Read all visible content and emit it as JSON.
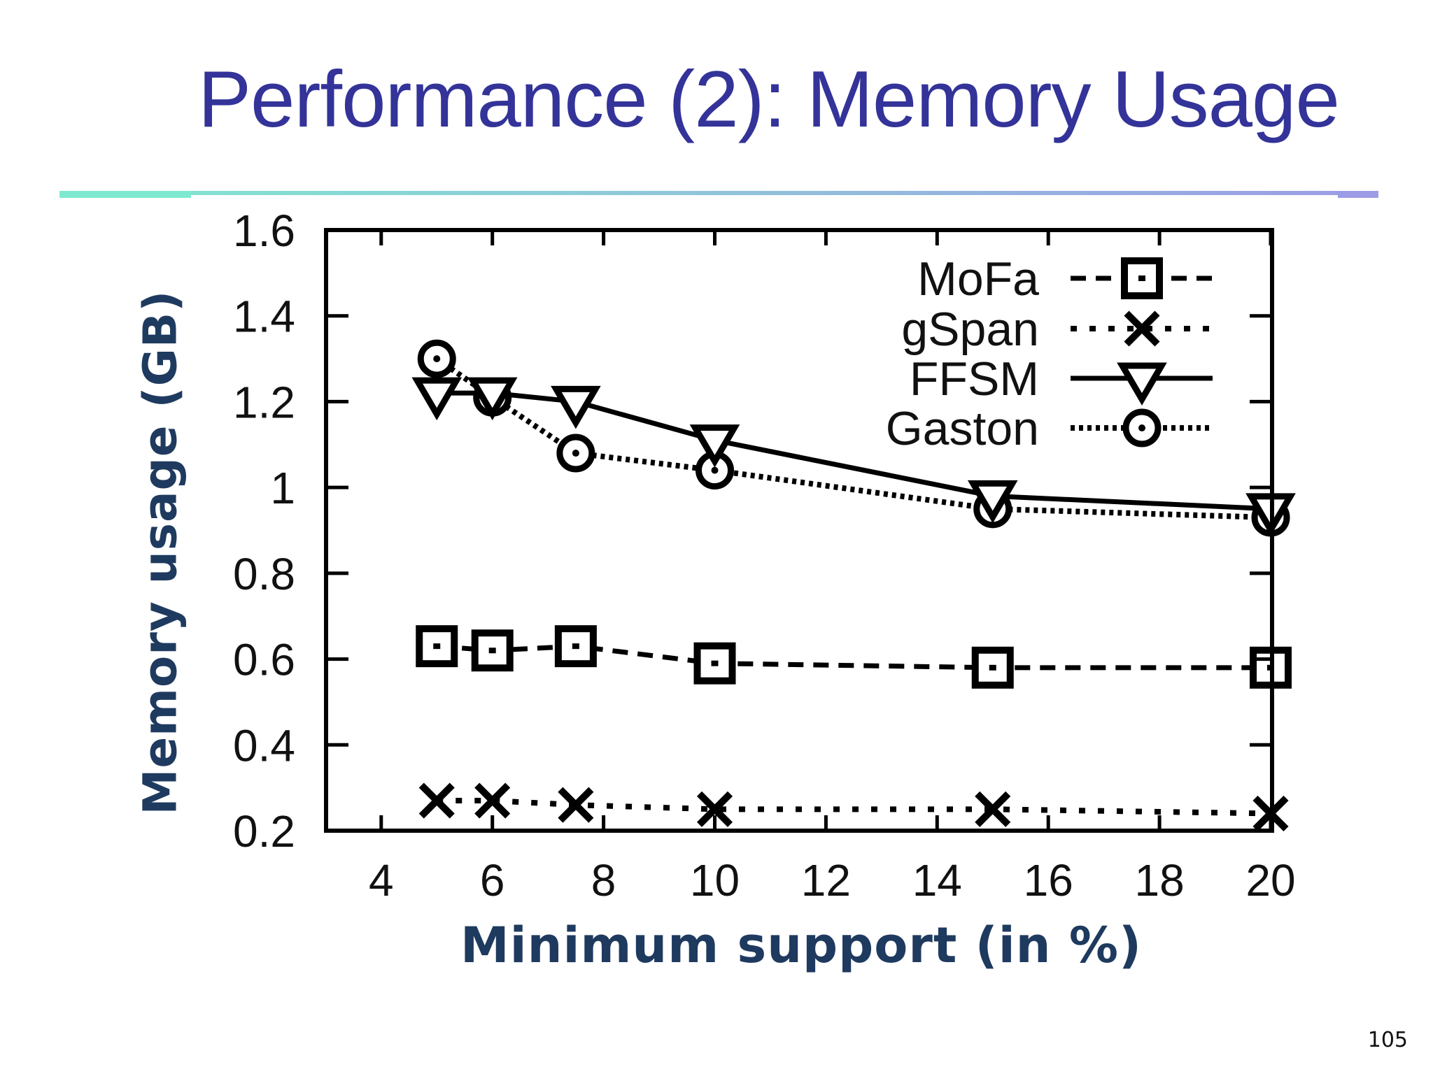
{
  "slide": {
    "title": "Performance (2): Memory Usage",
    "page_number": "105",
    "title_color": "#333399",
    "rule_colors": [
      "#7fe9cf",
      "#9c9ce6"
    ],
    "axis_label_color": "#1f3a5f"
  },
  "chart_data": {
    "type": "line",
    "title": "",
    "xlabel": "Minimum support (in %)",
    "ylabel": "Memory usage (GB)",
    "xlim": [
      3,
      20
    ],
    "ylim": [
      0.2,
      1.6
    ],
    "xticks": [
      4,
      6,
      8,
      10,
      12,
      14,
      16,
      18,
      20
    ],
    "xtick_labels": [
      "4",
      "6",
      "8",
      "10",
      "12",
      "14",
      "16",
      "18",
      "20"
    ],
    "yticks": [
      0.2,
      0.4,
      0.6,
      0.8,
      1.0,
      1.2,
      1.4,
      1.6
    ],
    "ytick_labels": [
      "0.2",
      "0.4",
      "0.6",
      "0.8",
      "1",
      "1.2",
      "1.4",
      "1.6"
    ],
    "grid": false,
    "legend_position": "upper right (inside)",
    "x": [
      5,
      6,
      7.5,
      10,
      15,
      20
    ],
    "series": [
      {
        "name": "MoFa",
        "marker": "square",
        "line": "dashed",
        "values": [
          0.63,
          0.62,
          0.63,
          0.59,
          0.58,
          0.58
        ]
      },
      {
        "name": "gSpan",
        "marker": "x",
        "line": "dotted",
        "values": [
          0.27,
          0.27,
          0.26,
          0.25,
          0.25,
          0.24
        ]
      },
      {
        "name": "FFSM",
        "marker": "triangle-down",
        "line": "solid",
        "values": [
          1.22,
          1.22,
          1.2,
          1.11,
          0.98,
          0.95
        ]
      },
      {
        "name": "Gaston",
        "marker": "circle",
        "line": "dense-dotted",
        "values": [
          1.3,
          1.21,
          1.08,
          1.04,
          0.95,
          0.93
        ]
      }
    ]
  }
}
